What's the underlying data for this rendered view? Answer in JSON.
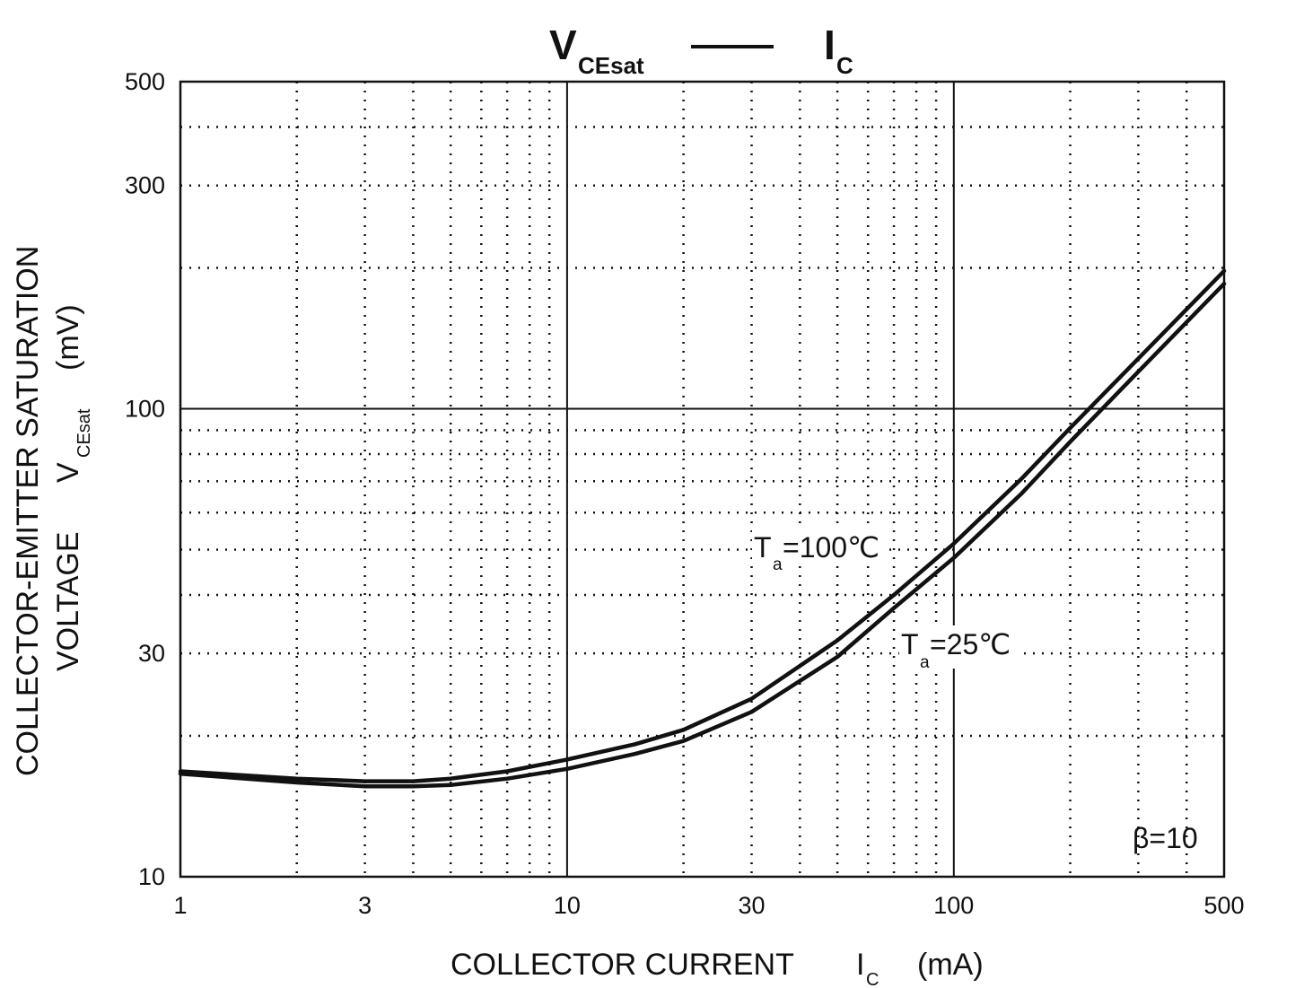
{
  "chart_data": {
    "type": "line",
    "title": {
      "left_main": "V",
      "left_sub": "CEsat",
      "right_main": "I",
      "right_sub": "C"
    },
    "xlabel": {
      "text": "COLLECTOR CURRENT",
      "symbol": "I",
      "symbol_sub": "C",
      "unit": "(mA)"
    },
    "ylabel": {
      "line1": "COLLECTOR-EMITTER SATURATION",
      "line2": "VOLTAGE",
      "symbol": "V",
      "symbol_sub": "CEsat",
      "unit": "(mV)"
    },
    "xscale": "log",
    "yscale": "log",
    "xlim": [
      1,
      500
    ],
    "ylim": [
      10,
      500
    ],
    "x_ticks": [
      {
        "value": 1,
        "label": "1"
      },
      {
        "value": 3,
        "label": "3"
      },
      {
        "value": 10,
        "label": "10"
      },
      {
        "value": 30,
        "label": "30"
      },
      {
        "value": 100,
        "label": "100"
      },
      {
        "value": 500,
        "label": "500"
      }
    ],
    "y_ticks": [
      {
        "value": 10,
        "label": "10"
      },
      {
        "value": 30,
        "label": "30"
      },
      {
        "value": 100,
        "label": "100"
      },
      {
        "value": 300,
        "label": "300"
      },
      {
        "value": 500,
        "label": "500"
      }
    ],
    "grid": true,
    "series": [
      {
        "name": "T_a=100℃",
        "label_main": "T",
        "label_sub": "a",
        "label_rest": "=100℃",
        "x": [
          1,
          2,
          3,
          4,
          5,
          7,
          10,
          15,
          20,
          30,
          50,
          70,
          100,
          150,
          200,
          300,
          500
        ],
        "y": [
          16.8,
          16.2,
          16.0,
          16.0,
          16.2,
          16.8,
          17.8,
          19.2,
          20.6,
          24.0,
          32.0,
          40.0,
          51.5,
          71.0,
          91.0,
          128.0,
          197.0
        ]
      },
      {
        "name": "T_a=25℃",
        "label_main": "T",
        "label_sub": "a",
        "label_rest": "=25℃",
        "x": [
          1,
          2,
          3,
          4,
          5,
          7,
          10,
          15,
          20,
          30,
          50,
          70,
          100,
          150,
          200,
          300,
          500
        ],
        "y": [
          16.6,
          15.9,
          15.6,
          15.6,
          15.7,
          16.2,
          17.0,
          18.3,
          19.5,
          22.5,
          29.5,
          37.5,
          48.0,
          66.0,
          85.0,
          120.0,
          185.0
        ]
      }
    ],
    "annotation": "β=10",
    "colors": {
      "line": "#111111",
      "grid": "#111111",
      "background": "#ffffff"
    }
  }
}
